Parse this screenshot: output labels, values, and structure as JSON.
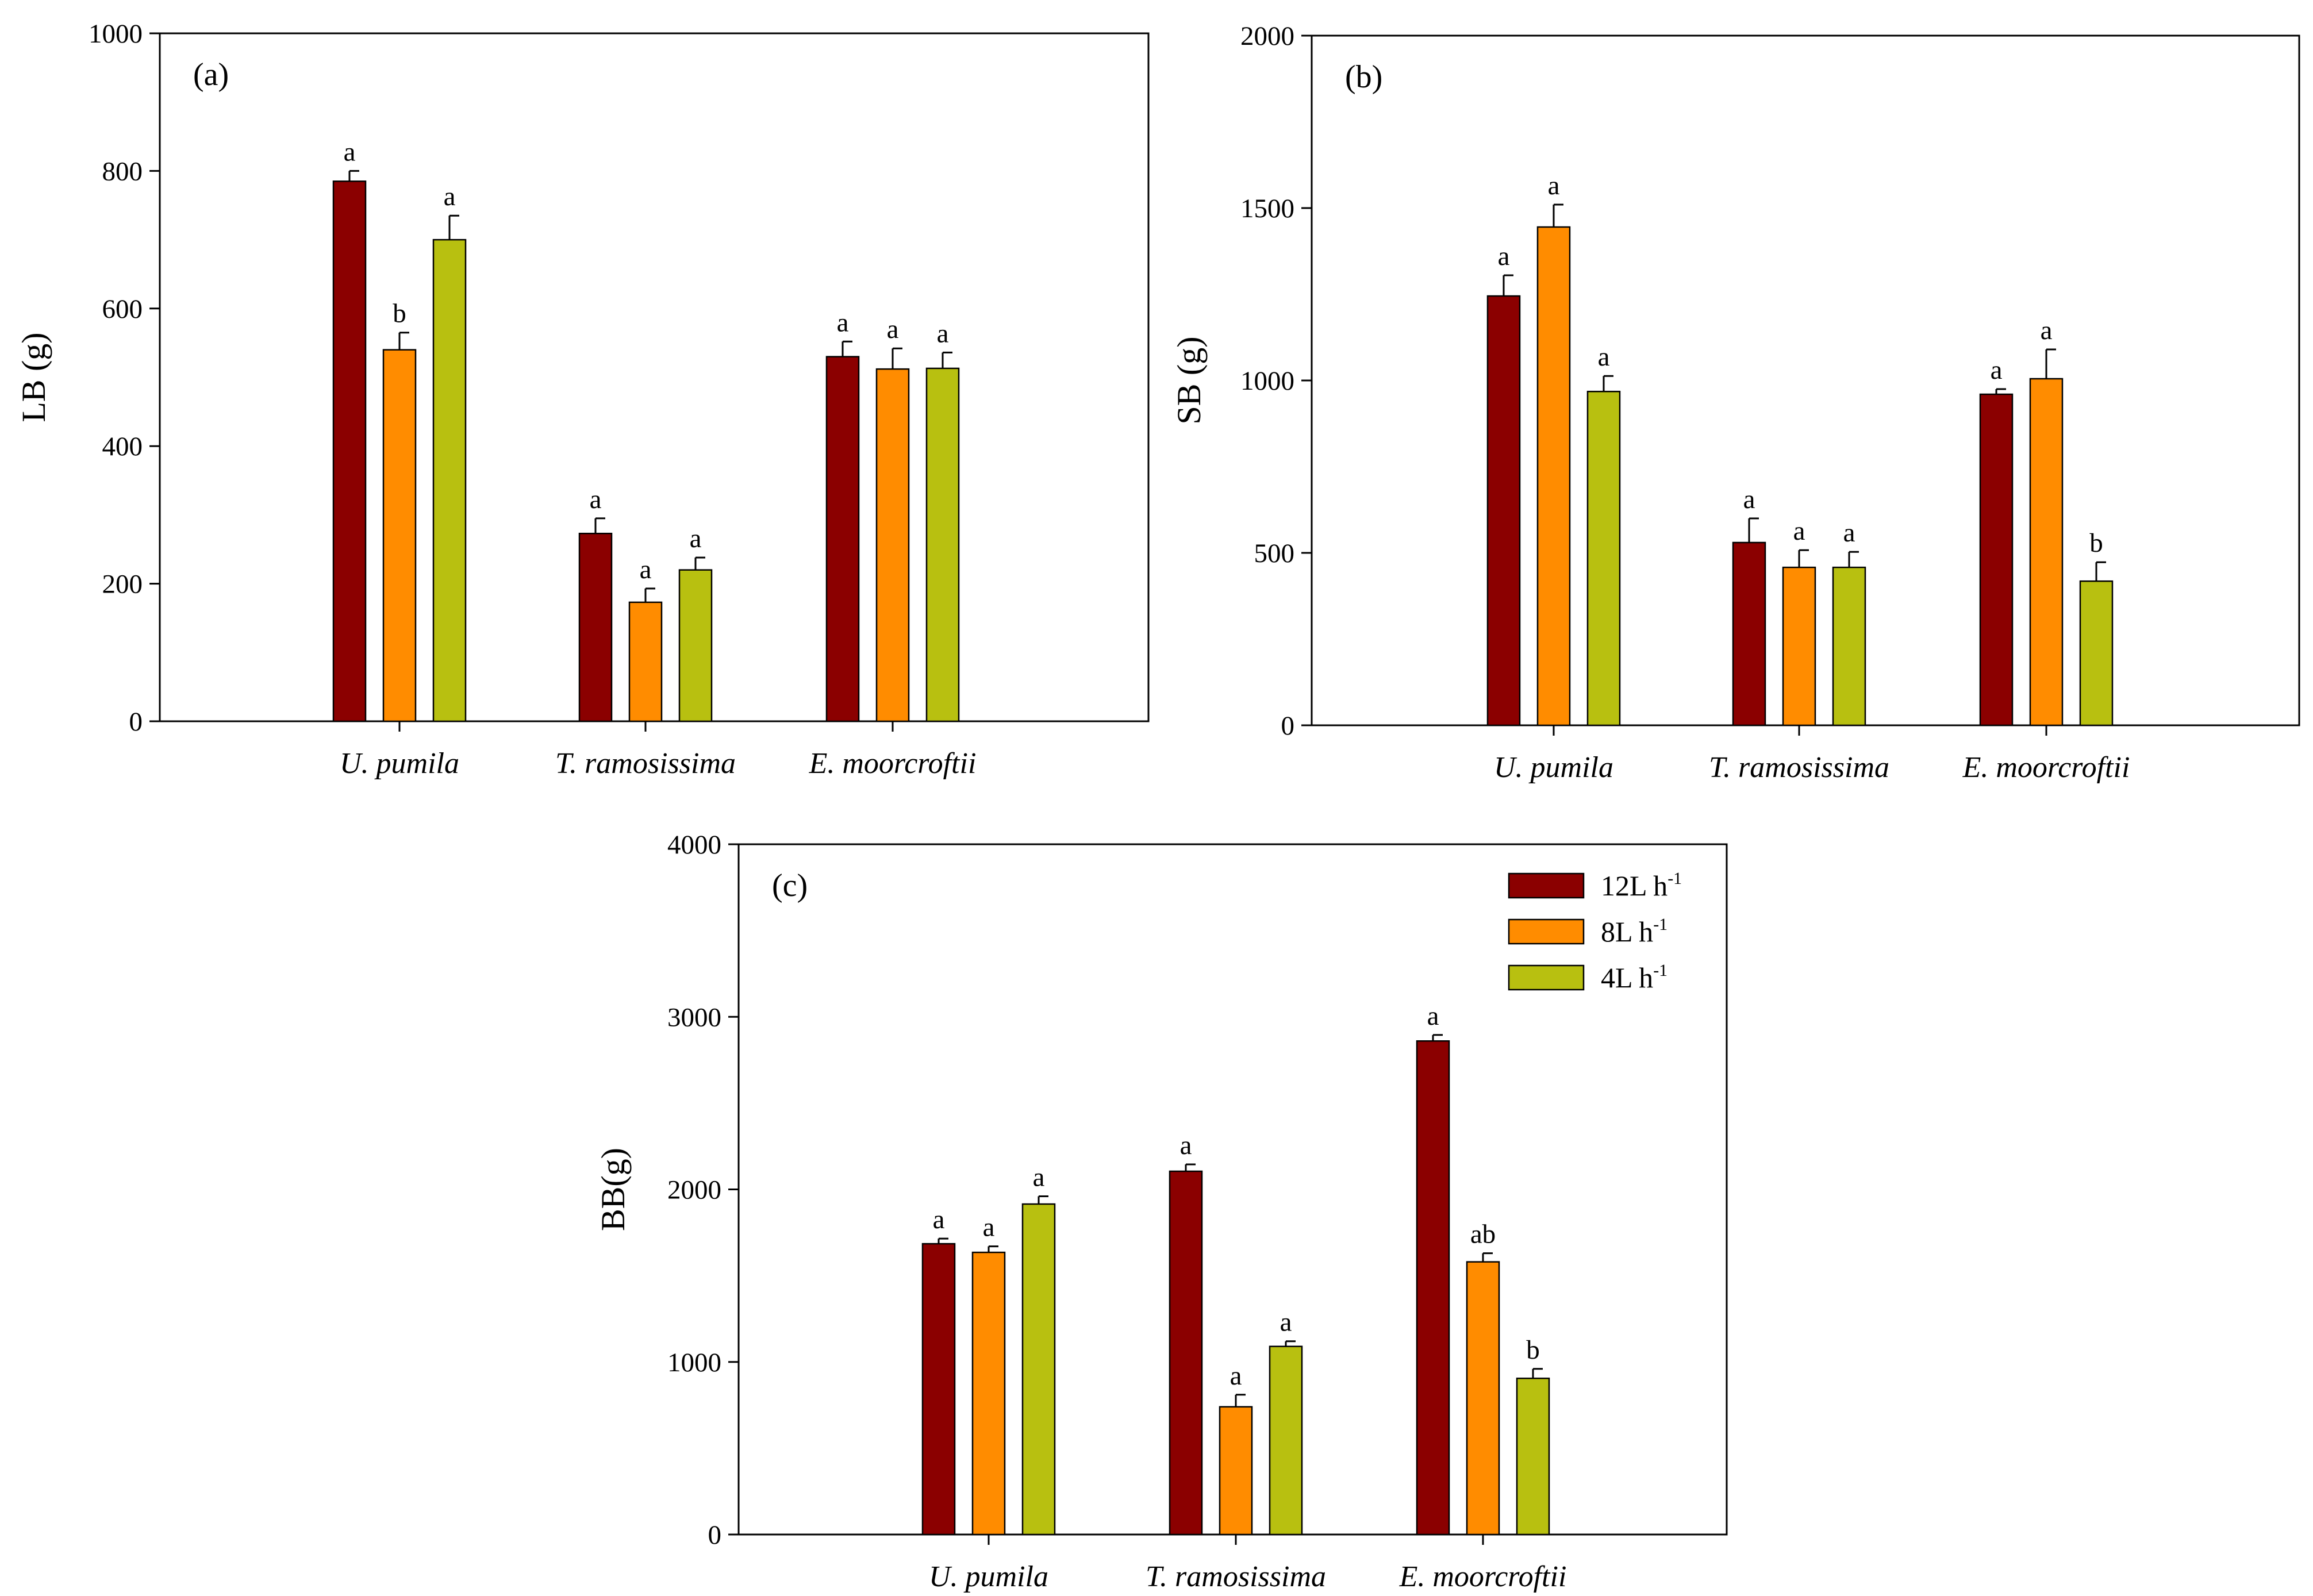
{
  "colors": {
    "12L h-1": "#8b0000",
    "8L h-1": "#ff8c00",
    "4L h-1": "#b8c010"
  },
  "chart_data": [
    {
      "id": "a",
      "type": "bar",
      "panel_label": "(a)",
      "ylabel": "LB (g)",
      "ylim": [
        0,
        1000
      ],
      "yticks": [
        "0",
        "200",
        "400",
        "600",
        "800",
        "1000"
      ],
      "categories": [
        "U. pumila",
        "T. ramosissima",
        "E. moorcroftii"
      ],
      "series": [
        {
          "name": "12L h-1",
          "values": [
            785,
            273,
            530
          ],
          "errors": [
            15,
            22,
            22
          ],
          "letters": [
            "a",
            "a",
            "a"
          ]
        },
        {
          "name": "8L h-1",
          "values": [
            540,
            173,
            512
          ],
          "errors": [
            25,
            20,
            30
          ],
          "letters": [
            "b",
            "a",
            "a"
          ]
        },
        {
          "name": "4L h-1",
          "values": [
            700,
            220,
            513
          ],
          "errors": [
            35,
            18,
            23
          ],
          "letters": [
            "a",
            "a",
            "a"
          ]
        }
      ]
    },
    {
      "id": "b",
      "type": "bar",
      "panel_label": "(b)",
      "ylabel": "SB (g)",
      "ylim": [
        0,
        2000
      ],
      "yticks": [
        "0",
        "500",
        "1000",
        "1500",
        "2000"
      ],
      "categories": [
        "U. pumila",
        "T. ramosissima",
        "E. moorcroftii"
      ],
      "series": [
        {
          "name": "12L h-1",
          "values": [
            1245,
            530,
            960
          ],
          "errors": [
            60,
            70,
            15
          ],
          "letters": [
            "a",
            "a",
            "a"
          ]
        },
        {
          "name": "8L h-1",
          "values": [
            1445,
            458,
            1005
          ],
          "errors": [
            65,
            50,
            85
          ],
          "letters": [
            "a",
            "a",
            "a"
          ]
        },
        {
          "name": "4L h-1",
          "values": [
            968,
            458,
            418
          ],
          "errors": [
            45,
            45,
            55
          ],
          "letters": [
            "a",
            "a",
            "b"
          ]
        }
      ]
    },
    {
      "id": "c",
      "type": "bar",
      "panel_label": "(c)",
      "ylabel": "BB(g)",
      "ylim": [
        0,
        4000
      ],
      "yticks": [
        "0",
        "1000",
        "2000",
        "3000",
        "4000"
      ],
      "categories": [
        "U. pumila",
        "T. ramosissima",
        "E. moorcroftii"
      ],
      "series": [
        {
          "name": "12L h-1",
          "values": [
            1685,
            2105,
            2860
          ],
          "errors": [
            30,
            40,
            35
          ],
          "letters": [
            "a",
            "a",
            "a"
          ]
        },
        {
          "name": "8L h-1",
          "values": [
            1635,
            740,
            1580
          ],
          "errors": [
            35,
            70,
            50
          ],
          "letters": [
            "a",
            "a",
            "ab"
          ]
        },
        {
          "name": "4L h-1",
          "values": [
            1915,
            1090,
            905
          ],
          "errors": [
            45,
            30,
            55
          ],
          "letters": [
            "a",
            "a",
            "b"
          ]
        }
      ],
      "legend": {
        "placement": "top-right",
        "entries": [
          {
            "series": "12L h-1",
            "base": "12L h",
            "sup": "-1"
          },
          {
            "series": "8L h-1",
            "base": "8L h",
            "sup": "-1"
          },
          {
            "series": "4L h-1",
            "base": "4L h",
            "sup": "-1"
          }
        ]
      }
    }
  ]
}
